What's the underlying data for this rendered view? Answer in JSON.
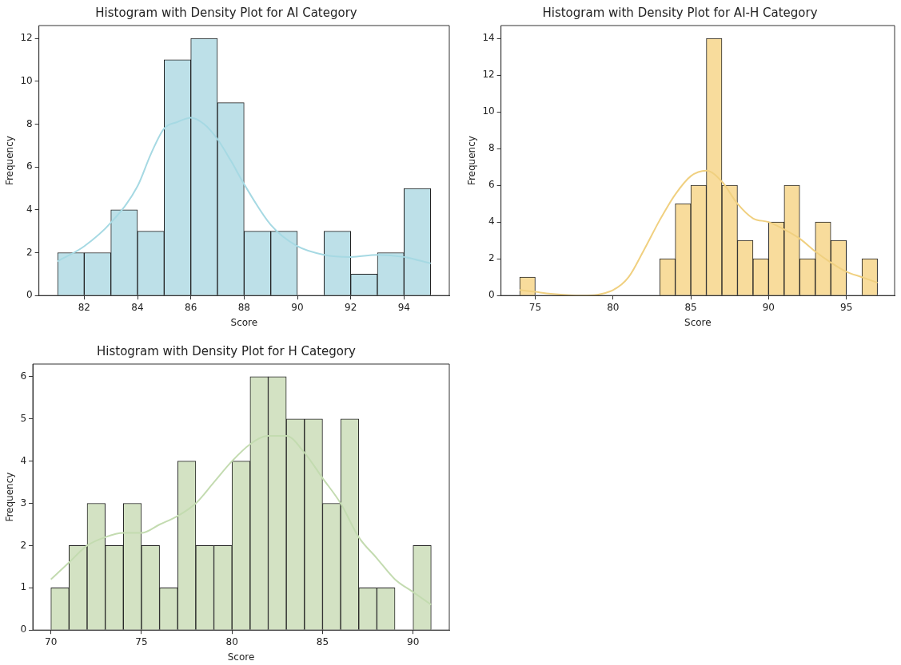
{
  "chart_data": [
    {
      "type": "histogram",
      "title": "Histogram with Density Plot for AI Category",
      "xlabel": "Score",
      "ylabel": "Frequency",
      "bins": [
        81,
        82,
        83,
        84,
        85,
        86,
        87,
        88,
        89,
        90,
        91,
        92,
        93,
        94,
        95
      ],
      "xlim": [
        80.3,
        95.7
      ],
      "xticks": [
        82,
        84,
        86,
        88,
        90,
        92,
        94
      ],
      "ylim": [
        0,
        12.6
      ],
      "yticks": [
        0,
        2,
        4,
        6,
        8,
        10,
        12
      ],
      "grid": false,
      "series": [
        {
          "color": "#bde0e8",
          "values": [
            2,
            2,
            4,
            3,
            11,
            12,
            9,
            3,
            3,
            0,
            3,
            1,
            2,
            5
          ]
        },
        {
          "type": "line",
          "color": "#a6d9e3",
          "x": [
            81,
            82,
            83,
            84,
            84.5,
            85,
            85.5,
            86,
            86.5,
            87,
            87.5,
            88,
            89,
            90,
            91,
            92,
            93,
            94,
            95
          ],
          "values": [
            1.6,
            2.3,
            3.4,
            5.1,
            6.6,
            7.8,
            8.1,
            8.3,
            8.0,
            7.3,
            6.3,
            5.2,
            3.3,
            2.3,
            1.9,
            1.8,
            1.9,
            1.8,
            1.5
          ]
        }
      ]
    },
    {
      "type": "histogram",
      "title": "Histogram with Density Plot for AI-H Category",
      "xlabel": "Score",
      "ylabel": "Frequency",
      "bins": [
        74,
        75,
        76,
        77,
        78,
        79,
        80,
        81,
        82,
        83,
        84,
        85,
        86,
        87,
        88,
        89,
        90,
        91,
        92,
        93,
        94,
        95,
        96,
        97
      ],
      "xlim": [
        72.8,
        98.1
      ],
      "xticks": [
        75,
        80,
        85,
        90,
        95
      ],
      "ylim": [
        0,
        14.7
      ],
      "yticks": [
        0,
        2,
        4,
        6,
        8,
        10,
        12,
        14
      ],
      "grid": false,
      "series": [
        {
          "color": "#f8dc9c",
          "values": [
            1,
            0,
            0,
            0,
            0,
            0,
            0,
            0,
            0,
            2,
            5,
            6,
            14,
            6,
            3,
            2,
            4,
            6,
            2,
            4,
            3,
            0,
            2
          ]
        },
        {
          "type": "line",
          "color": "#f0d080",
          "x": [
            74,
            75,
            76,
            78,
            80,
            81,
            82,
            83,
            84,
            85,
            86,
            87,
            88,
            89,
            90,
            91,
            92,
            93,
            94,
            95,
            96,
            97
          ],
          "values": [
            0.3,
            0.2,
            0.1,
            0.0,
            0.3,
            1.0,
            2.5,
            4.1,
            5.5,
            6.5,
            6.8,
            6.2,
            5.0,
            4.2,
            4.0,
            3.6,
            3.1,
            2.4,
            1.8,
            1.3,
            1.0,
            0.7
          ]
        }
      ]
    },
    {
      "type": "histogram",
      "title": "Histogram with Density Plot for H Category",
      "xlabel": "Score",
      "ylabel": "Frequency",
      "bins": [
        70,
        71,
        72,
        73,
        74,
        75,
        76,
        77,
        78,
        79,
        80,
        81,
        82,
        83,
        84,
        85,
        86,
        87,
        88,
        89,
        90,
        91
      ],
      "xlim": [
        69,
        92
      ],
      "xticks": [
        70,
        75,
        80,
        85,
        90
      ],
      "ylim": [
        0,
        6.3
      ],
      "yticks": [
        0,
        1,
        2,
        3,
        4,
        5,
        6
      ],
      "grid": false,
      "series": [
        {
          "color": "#d3e2c3",
          "values": [
            1,
            2,
            3,
            2,
            3,
            2,
            1,
            4,
            2,
            2,
            4,
            6,
            6,
            5,
            5,
            3,
            5,
            1,
            1,
            0,
            2
          ]
        },
        {
          "type": "line",
          "color": "#c3dbb0",
          "x": [
            70,
            71,
            72,
            73,
            74,
            75,
            76,
            77,
            78,
            79,
            80,
            81,
            82,
            83,
            84,
            85,
            86,
            87,
            88,
            89,
            90,
            91
          ],
          "values": [
            1.2,
            1.6,
            2.0,
            2.2,
            2.3,
            2.3,
            2.5,
            2.7,
            3.0,
            3.5,
            4.0,
            4.4,
            4.6,
            4.6,
            4.2,
            3.6,
            3.0,
            2.2,
            1.7,
            1.2,
            0.9,
            0.6
          ]
        }
      ]
    }
  ]
}
